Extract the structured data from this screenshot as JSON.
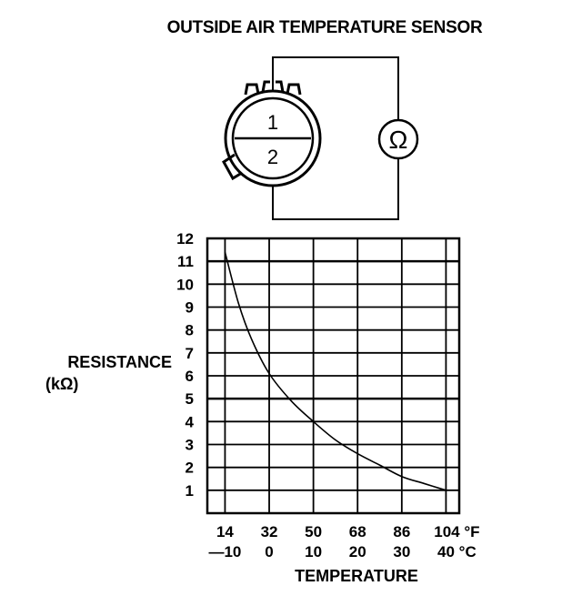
{
  "title": "OUTSIDE AIR TEMPERATURE SENSOR",
  "connector": {
    "pin_top": "1",
    "pin_bottom": "2"
  },
  "meter_symbol": "Ω",
  "chart_data": {
    "type": "line",
    "ylabel_line1": "RESISTANCE",
    "ylabel_line2": "(kΩ)",
    "xlabel": "TEMPERATURE",
    "y_ticks": [
      "12",
      "11",
      "10",
      "9",
      "8",
      "7",
      "6",
      "5",
      "4",
      "3",
      "2",
      "1"
    ],
    "x_ticks_f": [
      "14",
      "32",
      "50",
      "68",
      "86",
      "104 °F"
    ],
    "x_ticks_c": [
      "—10",
      "0",
      "10",
      "20",
      "30",
      "40 °C"
    ],
    "xlim_c": [
      -14,
      43
    ],
    "ylim": [
      0,
      12
    ],
    "grid": true,
    "series": [
      {
        "x_c": [
          -10,
          -7,
          -4,
          0,
          5,
          10,
          15,
          20,
          25,
          30,
          35,
          40
        ],
        "y": [
          11.4,
          9.2,
          7.6,
          6.1,
          4.9,
          4.0,
          3.2,
          2.6,
          2.1,
          1.6,
          1.3,
          1.0
        ]
      }
    ]
  }
}
